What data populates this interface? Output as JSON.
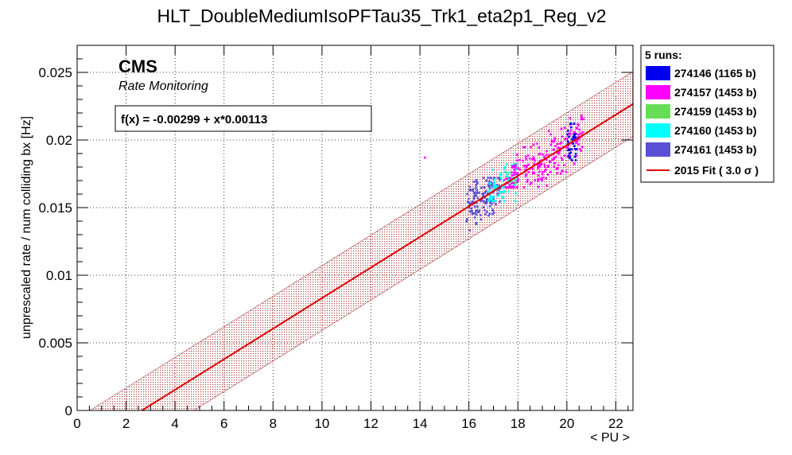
{
  "chart_data": {
    "type": "scatter",
    "title": "HLT_DoubleMediumIsoPFTau35_Trk1_eta2p1_Reg_v2",
    "xlabel": "< PU >",
    "ylabel": "unprescaled rate / num colliding bx [Hz]",
    "xlim": [
      0,
      22.7
    ],
    "ylim": [
      0,
      0.027
    ],
    "grid": true,
    "x_ticks": [
      "0",
      "2",
      "4",
      "6",
      "8",
      "10",
      "12",
      "14",
      "16",
      "18",
      "20",
      "22"
    ],
    "y_ticks": [
      "0",
      "0.005",
      "0.01",
      "0.015",
      "0.02",
      "0.025"
    ],
    "cms_label": "CMS",
    "cms_sublabel": "Rate Monitoring",
    "fit_formula": "f(x) = -0.00299 + x*0.00113",
    "fit": {
      "intercept": -0.00299,
      "slope": 0.00113,
      "band_sigma": 3.0,
      "band_halfwidth": 0.0024,
      "color": "#e00000"
    },
    "legend_title": "5 runs:",
    "legend_position": "right-outside",
    "series": [
      {
        "name": "274146 (1165 b)",
        "color": "#0000ee",
        "x_range": [
          20.0,
          20.4
        ],
        "y_range": [
          0.0185,
          0.0212
        ],
        "points": 40
      },
      {
        "name": "274157 (1453 b)",
        "color": "#ff00ff",
        "x_range": [
          17.4,
          20.7
        ],
        "y_range": [
          0.0165,
          0.0222
        ],
        "points": 230
      },
      {
        "name": "274159 (1453 b)",
        "color": "#66dd55",
        "x_range": [
          17.5,
          18.0
        ],
        "y_range": [
          0.0168,
          0.0176
        ],
        "points": 8
      },
      {
        "name": "274160 (1453 b)",
        "color": "#00ffff",
        "x_range": [
          16.8,
          18.0
        ],
        "y_range": [
          0.0155,
          0.0182
        ],
        "points": 90
      },
      {
        "name": "274161 (1453 b)",
        "color": "#5a4fd6",
        "x_range": [
          15.9,
          17.3
        ],
        "y_range": [
          0.013,
          0.0172
        ],
        "points": 150
      }
    ],
    "outliers": [
      {
        "series": "274157 (1453 b)",
        "x": 14.2,
        "y": 0.0187
      }
    ],
    "fit_legend_label": "2015 Fit ( 3.0 σ )"
  }
}
